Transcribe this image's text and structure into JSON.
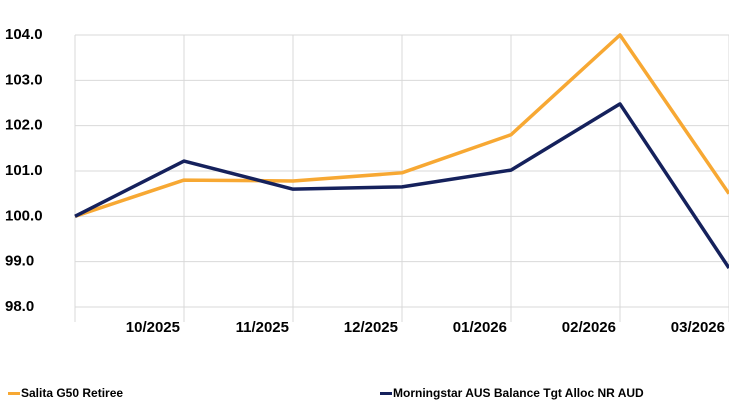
{
  "chart_data": {
    "type": "line",
    "categories": [
      null,
      "10/2025",
      "11/2025",
      "12/2025",
      "01/2026",
      "02/2026",
      "03/2026"
    ],
    "series": [
      {
        "name": "Salita G50 Retiree",
        "color": "#f7a833",
        "values": [
          100.0,
          100.8,
          100.78,
          100.96,
          101.8,
          104.0,
          100.5
        ]
      },
      {
        "name": "Morningstar AUS Balance Tgt Alloc NR AUD",
        "color": "#15215c",
        "values": [
          100.0,
          101.22,
          100.6,
          100.65,
          101.02,
          102.48,
          98.86
        ]
      }
    ],
    "ylim": [
      98,
      104
    ],
    "yticks": [
      {
        "value": 98,
        "label": "98.0"
      },
      {
        "value": 99,
        "label": "99.0"
      },
      {
        "value": 100,
        "label": "100.0"
      },
      {
        "value": 101,
        "label": "101.0"
      },
      {
        "value": 102,
        "label": "102.0"
      },
      {
        "value": 103,
        "label": "103.0"
      },
      {
        "value": 104,
        "label": "104.0"
      }
    ],
    "grid": true,
    "legend": "bottom"
  }
}
